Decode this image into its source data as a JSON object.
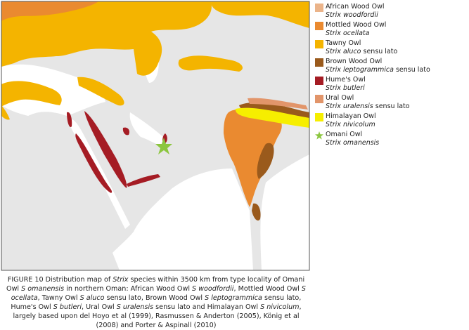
{
  "legend": [
    {
      "name": "African Wood Owl",
      "scientific": "Strix woodfordii",
      "color": "#ebb48a",
      "marker": "square"
    },
    {
      "name": "Mottled Wood Owl",
      "scientific": "Strix ocellata",
      "color": "#ea8a30",
      "marker": "square"
    },
    {
      "name": "Tawny Owl",
      "scientific": "Strix aluco",
      "qualifier": "sensu lato",
      "color": "#f4b400",
      "marker": "square"
    },
    {
      "name": "Brown Wood Owl",
      "scientific": "Strix leptogrammica",
      "qualifier": "sensu lato",
      "color": "#9a5a1c",
      "marker": "square"
    },
    {
      "name": "Hume's Owl",
      "scientific": "Strix butleri",
      "color": "#a51c24",
      "marker": "square"
    },
    {
      "name": "Ural Owl",
      "scientific": "Strix uralensis",
      "qualifier": "sensu lato",
      "color": "#e2956a",
      "marker": "square"
    },
    {
      "name": "Himalayan Owl",
      "scientific": "Strix nivicolum",
      "color": "#f6ee00",
      "marker": "square"
    },
    {
      "name": "Omani Owl",
      "scientific": "Strix omanensis",
      "color": "#8cc63f",
      "marker": "star"
    }
  ],
  "caption": [
    {
      "text": "FIGURE 10 Distribution map of ",
      "italic": false
    },
    {
      "text": "Strix",
      "italic": true
    },
    {
      "text": " species within 3500 km from type locality of Omani Owl ",
      "italic": false
    },
    {
      "text": "S omanensis",
      "italic": true
    },
    {
      "text": " in northern Oman: African Wood Owl ",
      "italic": false
    },
    {
      "text": "S woodfordii",
      "italic": true
    },
    {
      "text": ", Mottled Wood Owl ",
      "italic": false
    },
    {
      "text": "S ocellata",
      "italic": true
    },
    {
      "text": ", Tawny Owl ",
      "italic": false
    },
    {
      "text": "S aluco",
      "italic": true
    },
    {
      "text": " sensu lato, Brown Wood Owl ",
      "italic": false
    },
    {
      "text": "S leptogrammica",
      "italic": true
    },
    {
      "text": " sensu lato, Hume's Owl ",
      "italic": false
    },
    {
      "text": "S butleri",
      "italic": true
    },
    {
      "text": ", Ural Owl ",
      "italic": false
    },
    {
      "text": "S uralensis",
      "italic": true
    },
    {
      "text": " sensu lato and Himalayan Owl ",
      "italic": false
    },
    {
      "text": "S nivicolum",
      "italic": true
    },
    {
      "text": ", largely based upon del Hoyo et al (1999), Rasmussen & Anderton (2005), König et al (2008) and Porter & Aspinall (2010)",
      "italic": false
    }
  ]
}
